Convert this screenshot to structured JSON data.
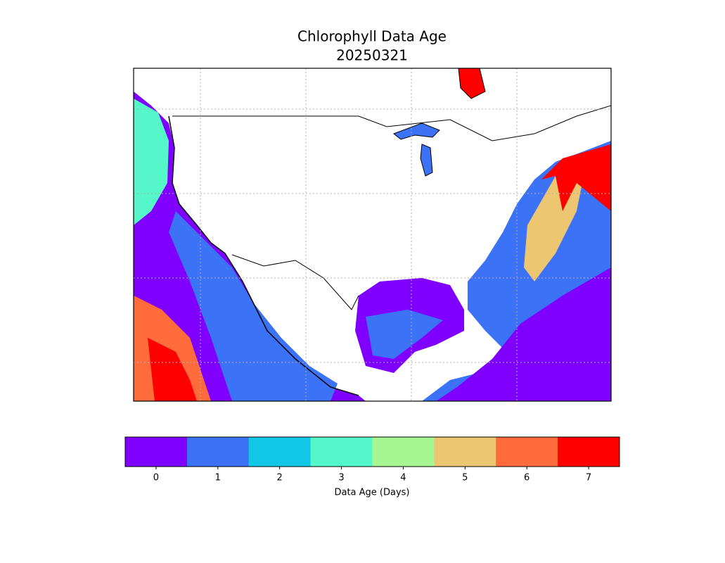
{
  "title": "Chlorophyll Data Age",
  "subtitle": "20250321",
  "colorbar": {
    "label": "Data Age (Days)",
    "ticks": [
      0,
      1,
      2,
      3,
      4,
      5,
      6,
      7
    ],
    "colors": [
      "#7f00ff",
      "#3b72f6",
      "#12c8e6",
      "#55f6c8",
      "#a6f792",
      "#ecc671",
      "#ff6b3b",
      "#ff0000"
    ]
  }
}
